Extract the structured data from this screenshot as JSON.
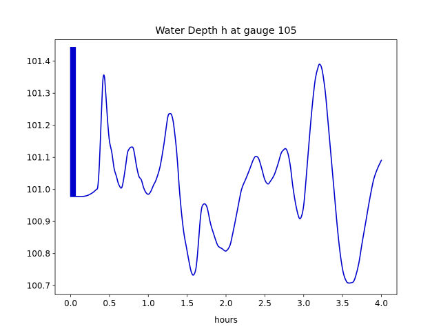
{
  "chart_data": {
    "type": "line",
    "title": "Water Depth h at gauge 105",
    "xlabel": "hours",
    "ylabel": "",
    "xlim": [
      -0.2,
      4.2
    ],
    "ylim": [
      100.672,
      101.467
    ],
    "xticks": [
      0.0,
      0.5,
      1.0,
      1.5,
      2.0,
      2.5,
      3.0,
      3.5,
      4.0
    ],
    "xtick_labels": [
      "0.0",
      "0.5",
      "1.0",
      "1.5",
      "2.0",
      "2.5",
      "3.0",
      "3.5",
      "4.0"
    ],
    "yticks": [
      100.7,
      100.8,
      100.9,
      101.0,
      101.1,
      101.2,
      101.3,
      101.4
    ],
    "ytick_labels": [
      "100.7",
      "100.8",
      "100.9",
      "101.0",
      "101.1",
      "101.2",
      "101.3",
      "101.4"
    ],
    "grid": false,
    "series": [
      {
        "color": "#0000cc",
        "x": [
          0.0,
          0.0,
          0.01,
          0.01,
          0.02,
          0.02,
          0.03,
          0.03,
          0.04,
          0.04,
          0.05,
          0.05,
          0.06,
          0.06,
          0.07,
          0.07,
          0.1,
          0.15,
          0.2,
          0.25,
          0.3,
          0.33,
          0.35,
          0.37,
          0.39,
          0.41,
          0.42,
          0.43,
          0.44,
          0.46,
          0.48,
          0.5,
          0.53,
          0.56,
          0.59,
          0.62,
          0.66,
          0.7,
          0.73,
          0.75,
          0.78,
          0.81,
          0.85,
          0.88,
          0.91,
          0.94,
          0.97,
          1.0,
          1.03,
          1.07,
          1.1,
          1.15,
          1.2,
          1.25,
          1.28,
          1.3,
          1.32,
          1.34,
          1.36,
          1.38,
          1.4,
          1.43,
          1.46,
          1.49,
          1.52,
          1.55,
          1.58,
          1.61,
          1.63,
          1.65,
          1.67,
          1.69,
          1.72,
          1.75,
          1.77,
          1.79,
          1.81,
          1.84,
          1.87,
          1.9,
          1.95,
          2.0,
          2.05,
          2.08,
          2.11,
          2.15,
          2.2,
          2.25,
          2.3,
          2.35,
          2.38,
          2.41,
          2.43,
          2.46,
          2.5,
          2.54,
          2.57,
          2.62,
          2.67,
          2.71,
          2.74,
          2.77,
          2.8,
          2.83,
          2.86,
          2.9,
          2.94,
          2.97,
          3.0,
          3.03,
          3.07,
          3.11,
          3.15,
          3.19,
          3.21,
          3.23,
          3.25,
          3.28,
          3.31,
          3.35,
          3.39,
          3.43,
          3.47,
          3.51,
          3.55,
          3.58,
          3.61,
          3.64,
          3.67,
          3.71,
          3.75,
          3.8,
          3.85,
          3.9,
          3.95,
          4.0
        ],
        "y": [
          101.443,
          100.978,
          100.978,
          101.443,
          101.443,
          100.978,
          100.978,
          101.443,
          101.443,
          100.978,
          100.978,
          101.443,
          101.443,
          100.978,
          100.978,
          100.978,
          100.978,
          100.978,
          100.98,
          100.985,
          100.993,
          101.0,
          101.01,
          101.08,
          101.2,
          101.32,
          101.352,
          101.356,
          101.34,
          101.27,
          101.2,
          101.15,
          101.115,
          101.065,
          101.04,
          101.015,
          101.007,
          101.06,
          101.112,
          101.125,
          101.132,
          101.125,
          101.07,
          101.04,
          101.03,
          101.005,
          100.99,
          100.985,
          100.993,
          101.015,
          101.03,
          101.07,
          101.14,
          101.225,
          101.236,
          101.232,
          101.212,
          101.175,
          101.13,
          101.07,
          101.0,
          100.92,
          100.86,
          100.82,
          100.78,
          100.745,
          100.733,
          100.75,
          100.79,
          100.85,
          100.91,
          100.945,
          100.955,
          100.948,
          100.93,
          100.905,
          100.885,
          100.862,
          100.84,
          100.823,
          100.815,
          100.808,
          100.825,
          100.855,
          100.89,
          100.94,
          101.0,
          101.03,
          101.06,
          101.092,
          101.103,
          101.1,
          101.09,
          101.065,
          101.03,
          101.017,
          101.025,
          101.045,
          101.08,
          101.113,
          101.123,
          101.127,
          101.11,
          101.07,
          101.01,
          100.95,
          100.912,
          100.915,
          100.95,
          101.03,
          101.15,
          101.26,
          101.345,
          101.385,
          101.39,
          101.38,
          101.355,
          101.3,
          101.22,
          101.11,
          101.0,
          100.89,
          100.8,
          100.74,
          100.713,
          100.708,
          100.709,
          100.712,
          100.73,
          100.77,
          100.83,
          100.9,
          100.97,
          101.03,
          101.065,
          101.091
        ]
      }
    ]
  }
}
